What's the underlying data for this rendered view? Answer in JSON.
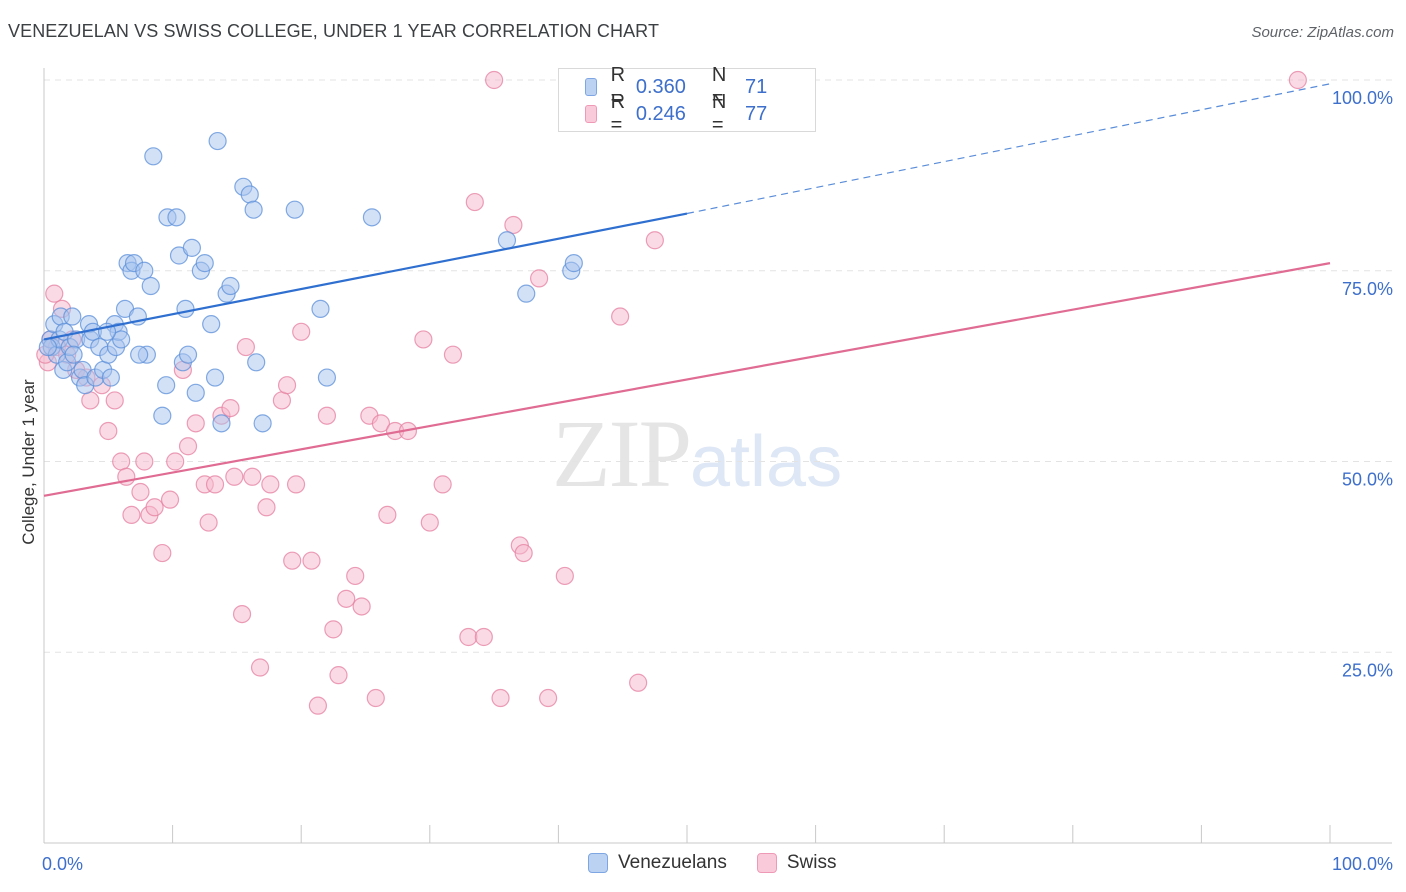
{
  "header": {
    "title": "VENEZUELAN VS SWISS COLLEGE, UNDER 1 YEAR CORRELATION CHART",
    "source": "Source: ZipAtlas.com"
  },
  "watermark": {
    "zip": "ZIP",
    "atlas": "atlas"
  },
  "legend": {
    "rows": [
      {
        "r_label": "R =",
        "r_value": "0.360",
        "n_label": "N =",
        "n_value": "71",
        "color": "#a8c4ee"
      },
      {
        "r_label": "R =",
        "r_value": "0.246",
        "n_label": "N =",
        "n_value": "77",
        "color": "#f6b8cc"
      }
    ]
  },
  "bottom_legend": [
    {
      "label": "Venezuelans",
      "color": "#a8c4ee"
    },
    {
      "label": "Swiss",
      "color": "#f6b8cc"
    }
  ],
  "chart_data": {
    "type": "scatter",
    "title": "VENEZUELAN VS SWISS COLLEGE, UNDER 1 YEAR CORRELATION CHART",
    "xlabel": "",
    "ylabel": "College, Under 1 year",
    "xlim": [
      0,
      100
    ],
    "ylim": [
      0,
      100
    ],
    "x_tick_labels": [
      "0.0%",
      "100.0%"
    ],
    "y_tick_labels": [
      {
        "value": 25,
        "label": "25.0%"
      },
      {
        "value": 50,
        "label": "50.0%"
      },
      {
        "value": 75,
        "label": "75.0%"
      },
      {
        "value": 100,
        "label": "100.0%"
      }
    ],
    "grid": true,
    "series": [
      {
        "name": "Venezuelans",
        "color": "#5b8fd9",
        "fill": "#a8c4ee",
        "trend": {
          "x0": 0,
          "y0": 66.0,
          "x1": 50,
          "y1": 82.5,
          "dash_to_x": 100,
          "dash_to_y": 99.5,
          "color": "#2f6fd0"
        },
        "points": [
          [
            0.5,
            66
          ],
          [
            0.6,
            65
          ],
          [
            0.8,
            68
          ],
          [
            1.0,
            64
          ],
          [
            1.2,
            66
          ],
          [
            1.3,
            69
          ],
          [
            1.5,
            62
          ],
          [
            1.6,
            67
          ],
          [
            1.8,
            63
          ],
          [
            2.0,
            65
          ],
          [
            2.2,
            69
          ],
          [
            2.5,
            66
          ],
          [
            2.8,
            61
          ],
          [
            3.0,
            62
          ],
          [
            3.2,
            60
          ],
          [
            3.5,
            68
          ],
          [
            3.6,
            66
          ],
          [
            3.8,
            67
          ],
          [
            4.0,
            61
          ],
          [
            4.3,
            65
          ],
          [
            4.6,
            62
          ],
          [
            5.0,
            64
          ],
          [
            5.2,
            61
          ],
          [
            5.5,
            68
          ],
          [
            5.6,
            65
          ],
          [
            5.8,
            67
          ],
          [
            6.0,
            66
          ],
          [
            6.3,
            70
          ],
          [
            6.5,
            76
          ],
          [
            6.8,
            75
          ],
          [
            7.0,
            76
          ],
          [
            7.3,
            69
          ],
          [
            7.8,
            75
          ],
          [
            8.0,
            64
          ],
          [
            8.3,
            73
          ],
          [
            8.5,
            90
          ],
          [
            9.2,
            56
          ],
          [
            9.5,
            60
          ],
          [
            9.6,
            82
          ],
          [
            10.3,
            82
          ],
          [
            10.5,
            77
          ],
          [
            10.8,
            63
          ],
          [
            11.0,
            70
          ],
          [
            11.2,
            64
          ],
          [
            11.5,
            78
          ],
          [
            11.8,
            59
          ],
          [
            12.2,
            75
          ],
          [
            12.5,
            76
          ],
          [
            13.0,
            68
          ],
          [
            13.3,
            61
          ],
          [
            13.5,
            92
          ],
          [
            13.8,
            55
          ],
          [
            14.2,
            72
          ],
          [
            14.5,
            73
          ],
          [
            15.5,
            86
          ],
          [
            16.0,
            85
          ],
          [
            16.3,
            83
          ],
          [
            16.5,
            63
          ],
          [
            17.0,
            55
          ],
          [
            19.5,
            83
          ],
          [
            21.5,
            70
          ],
          [
            22.0,
            61
          ],
          [
            25.5,
            82
          ],
          [
            36.0,
            79
          ],
          [
            37.5,
            72
          ],
          [
            41.0,
            75
          ],
          [
            41.2,
            76
          ],
          [
            0.3,
            65
          ],
          [
            2.3,
            64
          ],
          [
            4.9,
            67
          ],
          [
            7.4,
            64
          ]
        ]
      },
      {
        "name": "Swiss",
        "color": "#e57fa0",
        "fill": "#f6b8cc",
        "trend": {
          "x0": 0,
          "y0": 45.5,
          "x1": 100,
          "y1": 76.0,
          "color": "#e06b93"
        },
        "points": [
          [
            0.3,
            63
          ],
          [
            0.5,
            66
          ],
          [
            0.8,
            72
          ],
          [
            1.0,
            65
          ],
          [
            1.4,
            70
          ],
          [
            1.8,
            64
          ],
          [
            2.2,
            66
          ],
          [
            2.5,
            62
          ],
          [
            3.3,
            61
          ],
          [
            3.6,
            58
          ],
          [
            4.5,
            60
          ],
          [
            5.0,
            54
          ],
          [
            5.5,
            58
          ],
          [
            6.0,
            50
          ],
          [
            6.4,
            48
          ],
          [
            6.8,
            43
          ],
          [
            7.5,
            46
          ],
          [
            7.8,
            50
          ],
          [
            8.2,
            43
          ],
          [
            8.6,
            44
          ],
          [
            9.2,
            38
          ],
          [
            9.8,
            45
          ],
          [
            10.2,
            50
          ],
          [
            10.8,
            62
          ],
          [
            11.2,
            52
          ],
          [
            11.8,
            55
          ],
          [
            12.5,
            47
          ],
          [
            12.8,
            42
          ],
          [
            13.3,
            47
          ],
          [
            13.8,
            56
          ],
          [
            14.5,
            57
          ],
          [
            14.8,
            48
          ],
          [
            15.4,
            30
          ],
          [
            15.7,
            65
          ],
          [
            16.2,
            48
          ],
          [
            16.8,
            23
          ],
          [
            17.3,
            44
          ],
          [
            17.6,
            47
          ],
          [
            18.5,
            58
          ],
          [
            18.9,
            60
          ],
          [
            19.3,
            37
          ],
          [
            19.6,
            47
          ],
          [
            20.0,
            67
          ],
          [
            20.8,
            37
          ],
          [
            21.3,
            18
          ],
          [
            22.0,
            56
          ],
          [
            22.5,
            28
          ],
          [
            22.9,
            22
          ],
          [
            23.5,
            32
          ],
          [
            24.2,
            35
          ],
          [
            24.7,
            31
          ],
          [
            25.3,
            56
          ],
          [
            25.8,
            19
          ],
          [
            26.2,
            55
          ],
          [
            26.7,
            43
          ],
          [
            27.3,
            54
          ],
          [
            28.3,
            54
          ],
          [
            29.5,
            66
          ],
          [
            30.0,
            42
          ],
          [
            31.0,
            47
          ],
          [
            31.8,
            64
          ],
          [
            33.0,
            27
          ],
          [
            33.5,
            84
          ],
          [
            34.2,
            27
          ],
          [
            35.0,
            100
          ],
          [
            35.5,
            19
          ],
          [
            36.5,
            81
          ],
          [
            37.0,
            39
          ],
          [
            37.3,
            38
          ],
          [
            38.5,
            74
          ],
          [
            39.2,
            19
          ],
          [
            40.5,
            35
          ],
          [
            44.8,
            69
          ],
          [
            46.2,
            21
          ],
          [
            47.5,
            79
          ],
          [
            97.5,
            100
          ],
          [
            0.1,
            64
          ]
        ]
      }
    ]
  }
}
